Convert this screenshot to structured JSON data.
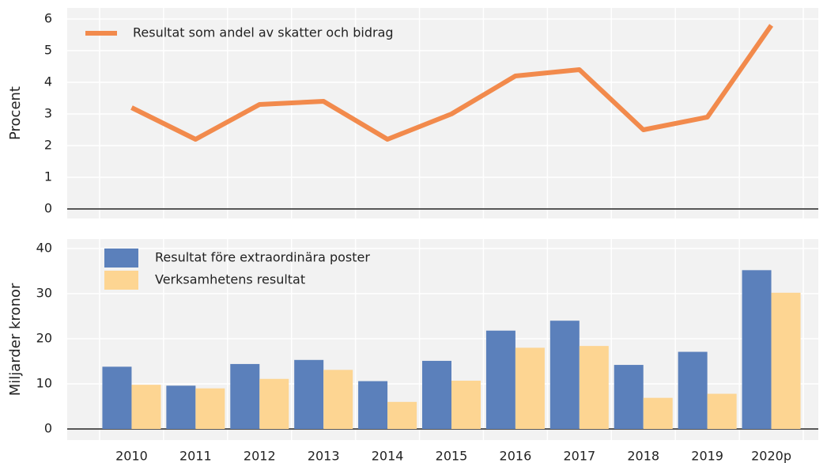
{
  "chart_data": [
    {
      "type": "line",
      "ylabel": "Procent",
      "series": [
        {
          "name": "Resultat som andel av skatter och bidrag",
          "color": "#f28a4c",
          "values": [
            3.2,
            2.2,
            3.3,
            3.4,
            2.2,
            3.0,
            4.2,
            4.4,
            2.5,
            2.9,
            5.8
          ]
        }
      ],
      "ylim": [
        0,
        6
      ],
      "yticks": [
        0,
        1,
        2,
        3,
        4,
        5,
        6
      ],
      "grid": true,
      "legend": "upper left"
    },
    {
      "type": "bar",
      "ylabel": "Miljarder kronor",
      "categories": [
        "2010",
        "2011",
        "2012",
        "2013",
        "2014",
        "2015",
        "2016",
        "2017",
        "2018",
        "2019",
        "2020p"
      ],
      "series": [
        {
          "name": "Resultat före extraordinära poster",
          "color": "#5b80bb",
          "values": [
            13.8,
            9.6,
            14.4,
            15.3,
            10.6,
            15.1,
            21.8,
            24.0,
            14.2,
            17.1,
            35.2
          ]
        },
        {
          "name": "Verksamhetens resultat",
          "color": "#fdd592",
          "values": [
            9.8,
            9.0,
            11.1,
            13.1,
            6.0,
            10.7,
            18.0,
            18.4,
            6.9,
            7.8,
            30.2
          ]
        }
      ],
      "ylim": [
        0,
        40
      ],
      "yticks": [
        0,
        10,
        20,
        30,
        40
      ],
      "grid": true,
      "legend": "upper left"
    }
  ]
}
